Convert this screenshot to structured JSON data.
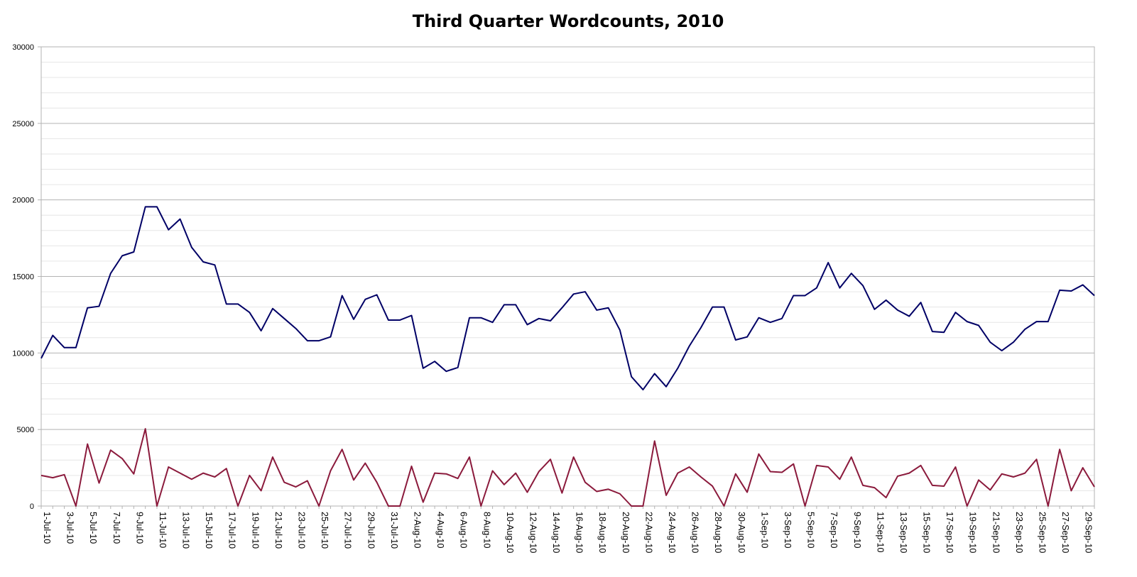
{
  "chart_data": {
    "type": "line",
    "title": "Third Quarter Wordcounts, 2010",
    "xlabel": "",
    "ylabel": "",
    "ylim": [
      0,
      30000
    ],
    "y_ticks": [
      0,
      5000,
      10000,
      15000,
      20000,
      25000,
      30000
    ],
    "grid": true,
    "legend": "none",
    "x": [
      "1-Jul-10",
      "2-Jul-10",
      "3-Jul-10",
      "4-Jul-10",
      "5-Jul-10",
      "6-Jul-10",
      "7-Jul-10",
      "8-Jul-10",
      "9-Jul-10",
      "10-Jul-10",
      "11-Jul-10",
      "12-Jul-10",
      "13-Jul-10",
      "14-Jul-10",
      "15-Jul-10",
      "16-Jul-10",
      "17-Jul-10",
      "18-Jul-10",
      "19-Jul-10",
      "20-Jul-10",
      "21-Jul-10",
      "22-Jul-10",
      "23-Jul-10",
      "24-Jul-10",
      "25-Jul-10",
      "26-Jul-10",
      "27-Jul-10",
      "28-Jul-10",
      "29-Jul-10",
      "30-Jul-10",
      "31-Jul-10",
      "1-Aug-10",
      "2-Aug-10",
      "3-Aug-10",
      "4-Aug-10",
      "5-Aug-10",
      "6-Aug-10",
      "7-Aug-10",
      "8-Aug-10",
      "9-Aug-10",
      "10-Aug-10",
      "11-Aug-10",
      "12-Aug-10",
      "13-Aug-10",
      "14-Aug-10",
      "15-Aug-10",
      "16-Aug-10",
      "17-Aug-10",
      "18-Aug-10",
      "19-Aug-10",
      "20-Aug-10",
      "21-Aug-10",
      "22-Aug-10",
      "23-Aug-10",
      "24-Aug-10",
      "25-Aug-10",
      "26-Aug-10",
      "27-Aug-10",
      "28-Aug-10",
      "29-Aug-10",
      "30-Aug-10",
      "31-Aug-10",
      "1-Sep-10",
      "2-Sep-10",
      "3-Sep-10",
      "4-Sep-10",
      "5-Sep-10",
      "6-Sep-10",
      "7-Sep-10",
      "8-Sep-10",
      "9-Sep-10",
      "10-Sep-10",
      "11-Sep-10",
      "12-Sep-10",
      "13-Sep-10",
      "14-Sep-10",
      "15-Sep-10",
      "16-Sep-10",
      "17-Sep-10",
      "18-Sep-10",
      "19-Sep-10",
      "20-Sep-10",
      "21-Sep-10",
      "22-Sep-10",
      "23-Sep-10",
      "24-Sep-10",
      "25-Sep-10",
      "26-Sep-10",
      "27-Sep-10",
      "28-Sep-10",
      "29-Sep-10",
      "30-Sep-10"
    ],
    "x_tick_labels": [
      "1-Jul-10",
      "3-Jul-10",
      "5-Jul-10",
      "7-Jul-10",
      "9-Jul-10",
      "11-Jul-10",
      "13-Jul-10",
      "15-Jul-10",
      "17-Jul-10",
      "19-Jul-10",
      "21-Jul-10",
      "23-Jul-10",
      "25-Jul-10",
      "27-Jul-10",
      "29-Jul-10",
      "31-Jul-10",
      "2-Aug-10",
      "4-Aug-10",
      "6-Aug-10",
      "8-Aug-10",
      "10-Aug-10",
      "12-Aug-10",
      "14-Aug-10",
      "16-Aug-10",
      "18-Aug-10",
      "20-Aug-10",
      "22-Aug-10",
      "24-Aug-10",
      "26-Aug-10",
      "28-Aug-10",
      "30-Aug-10",
      "1-Sep-10",
      "3-Sep-10",
      "5-Sep-10",
      "7-Sep-10",
      "9-Sep-10",
      "11-Sep-10",
      "13-Sep-10",
      "15-Sep-10",
      "17-Sep-10",
      "19-Sep-10",
      "21-Sep-10",
      "23-Sep-10",
      "25-Sep-10",
      "27-Sep-10",
      "29-Sep-10"
    ],
    "series": [
      {
        "color": "#000066",
        "values": [
          9650,
          11150,
          10350,
          10350,
          12950,
          13050,
          15200,
          16350,
          16600,
          19550,
          19550,
          18050,
          18750,
          16900,
          15950,
          15750,
          13200,
          13200,
          12650,
          11450,
          12900,
          12250,
          11600,
          10800,
          10800,
          11050,
          13750,
          12200,
          13500,
          13800,
          12150,
          12150,
          12450,
          9000,
          9450,
          8800,
          9050,
          12300,
          12300,
          12000,
          13150,
          13150,
          11850,
          12250,
          12100,
          12950,
          13850,
          14000,
          12800,
          12950,
          11500,
          8450,
          7600,
          8650,
          7800,
          9000,
          10450,
          11650,
          13000,
          13000,
          10850,
          11050,
          12300,
          12000,
          12250,
          13750,
          13750,
          14250,
          15900,
          14250,
          15200,
          14400,
          12850,
          13450,
          12800,
          12400,
          13300,
          11400,
          11350,
          12650,
          12050,
          11800,
          10700,
          10150,
          10700,
          11550,
          12050,
          12050,
          14100,
          14050,
          14450,
          13750
        ]
      },
      {
        "color": "#8b1a3c",
        "values": [
          2000,
          1850,
          2050,
          0,
          4050,
          1500,
          3650,
          3100,
          2100,
          5050,
          0,
          2550,
          2150,
          1750,
          2150,
          1900,
          2450,
          0,
          2000,
          1000,
          3200,
          1550,
          1250,
          1650,
          0,
          2300,
          3700,
          1700,
          2800,
          1550,
          0,
          0,
          2600,
          250,
          2150,
          2100,
          1800,
          3200,
          0,
          2300,
          1400,
          2150,
          900,
          2250,
          3050,
          850,
          3200,
          1550,
          950,
          1100,
          800,
          0,
          0,
          4250,
          700,
          2150,
          2550,
          1900,
          1300,
          0,
          2100,
          900,
          3400,
          2250,
          2200,
          2750,
          0,
          2650,
          2550,
          1750,
          3200,
          1350,
          1200,
          550,
          1950,
          2150,
          2650,
          1350,
          1300,
          2550,
          0,
          1700,
          1050,
          2100,
          1900,
          2150,
          3050,
          0,
          3700,
          1000,
          2500,
          1250
        ]
      }
    ]
  }
}
